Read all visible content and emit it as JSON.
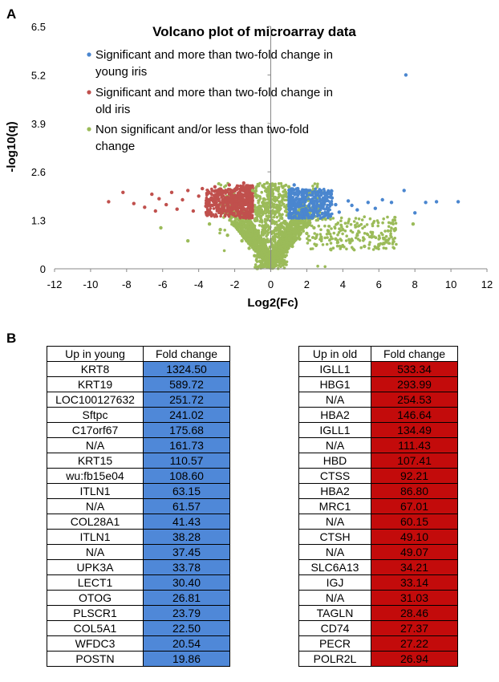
{
  "panels": {
    "a": "A",
    "b": "B"
  },
  "chart_data": {
    "type": "scatter",
    "title": "Volcano plot of microarray data",
    "xlabel": "Log2(Fc)",
    "ylabel": "-log10(q)",
    "xlim": [
      -12,
      12
    ],
    "ylim": [
      0,
      6.5
    ],
    "xticks": [
      "-12",
      "-10",
      "-8",
      "-6",
      "-4",
      "-2",
      "0",
      "2",
      "4",
      "6",
      "8",
      "10",
      "12"
    ],
    "yticks": [
      "0",
      "1.3",
      "2.6",
      "3.9",
      "5.2",
      "6.5"
    ],
    "grid": false,
    "legend_position": "top-center",
    "series": [
      {
        "name": "Significant and more than two-fold change in young iris",
        "color": "#4a86cf",
        "points": [
          [
            7.5,
            5.2
          ],
          [
            7.4,
            2.1
          ],
          [
            8.0,
            1.5
          ],
          [
            9.2,
            1.8
          ],
          [
            10.4,
            1.8
          ],
          [
            8.6,
            1.78
          ],
          [
            6.7,
            1.78
          ],
          [
            6.2,
            1.85
          ],
          [
            5.8,
            1.62
          ],
          [
            5.4,
            1.78
          ],
          [
            4.8,
            1.58
          ],
          [
            4.5,
            1.7
          ],
          [
            4.3,
            1.82
          ],
          [
            3.8,
            1.52
          ],
          [
            3.6,
            1.72
          ],
          [
            3.4,
            1.9
          ],
          [
            3.2,
            1.6
          ],
          [
            2.9,
            1.75
          ],
          [
            2.7,
            1.95
          ],
          [
            2.5,
            1.55
          ],
          [
            2.3,
            1.85
          ],
          [
            2.1,
            1.68
          ],
          [
            1.9,
            2.05
          ],
          [
            1.7,
            1.78
          ],
          [
            1.5,
            2.15
          ],
          [
            1.3,
            2.25
          ]
        ]
      },
      {
        "name": "Significant and more than two-fold change in old iris",
        "color": "#c0504d",
        "points": [
          [
            -9.0,
            1.8
          ],
          [
            -8.2,
            2.05
          ],
          [
            -7.6,
            1.75
          ],
          [
            -7.0,
            1.65
          ],
          [
            -6.6,
            2.0
          ],
          [
            -6.4,
            1.55
          ],
          [
            -6.2,
            1.88
          ],
          [
            -5.8,
            1.72
          ],
          [
            -5.5,
            2.05
          ],
          [
            -5.2,
            1.6
          ],
          [
            -4.9,
            1.85
          ],
          [
            -4.6,
            2.1
          ],
          [
            -4.3,
            1.55
          ],
          [
            -4.0,
            1.95
          ],
          [
            -3.8,
            2.15
          ],
          [
            -3.6,
            1.68
          ],
          [
            -3.3,
            1.9
          ],
          [
            -3.1,
            2.2
          ],
          [
            -2.9,
            1.6
          ],
          [
            -2.7,
            2.05
          ],
          [
            -2.5,
            1.78
          ],
          [
            -2.3,
            2.25
          ],
          [
            -2.1,
            1.7
          ],
          [
            -1.9,
            2.15
          ],
          [
            -1.7,
            1.95
          ],
          [
            -1.5,
            2.3
          ],
          [
            -1.3,
            2.08
          ]
        ]
      },
      {
        "name": "Non significant and/or less than two-fold change",
        "color": "#9bbb59",
        "points": [
          [
            -6.1,
            1.1
          ],
          [
            -4.6,
            0.75
          ],
          [
            -3.4,
            1.2
          ],
          [
            -2.8,
            1.05
          ],
          [
            -2.4,
            0.9
          ],
          [
            -2.0,
            1.15
          ],
          [
            -1.6,
            0.75
          ],
          [
            -1.2,
            0.55
          ],
          [
            -0.9,
            0.35
          ],
          [
            -0.6,
            0.2
          ],
          [
            -0.3,
            0.08
          ],
          [
            0.0,
            0.02
          ],
          [
            0.3,
            0.1
          ],
          [
            0.6,
            0.25
          ],
          [
            0.9,
            0.45
          ],
          [
            1.2,
            0.6
          ],
          [
            1.6,
            0.8
          ],
          [
            2.0,
            0.95
          ],
          [
            2.4,
            1.1
          ],
          [
            2.8,
            0.85
          ],
          [
            3.2,
            1.0
          ],
          [
            3.6,
            0.8
          ],
          [
            4.0,
            1.05
          ],
          [
            4.4,
            0.7
          ],
          [
            4.8,
            0.9
          ],
          [
            5.2,
            0.6
          ],
          [
            5.6,
            0.85
          ],
          [
            6.0,
            0.65
          ],
          [
            6.4,
            0.72
          ],
          [
            6.8,
            1.3
          ],
          [
            7.9,
            1.2
          ],
          [
            -1.0,
            2.1
          ],
          [
            1.0,
            2.2
          ],
          [
            -0.5,
            1.5
          ],
          [
            0.5,
            1.6
          ],
          [
            -0.2,
            2.3
          ],
          [
            0.2,
            2.25
          ]
        ]
      }
    ]
  },
  "tables": {
    "young": {
      "headers": [
        "Up in young",
        "Fold change"
      ],
      "rows": [
        [
          "KRT8",
          "1324.50"
        ],
        [
          "KRT19",
          "589.72"
        ],
        [
          "LOC100127632",
          "251.72"
        ],
        [
          "Sftpc",
          "241.02"
        ],
        [
          "C17orf67",
          "175.68"
        ],
        [
          "N/A",
          "161.73"
        ],
        [
          "KRT15",
          "110.57"
        ],
        [
          "wu:fb15e04",
          "108.60"
        ],
        [
          "ITLN1",
          "63.15"
        ],
        [
          "N/A",
          "61.57"
        ],
        [
          "COL28A1",
          "41.43"
        ],
        [
          "ITLN1",
          "38.28"
        ],
        [
          "N/A",
          "37.45"
        ],
        [
          "UPK3A",
          "33.78"
        ],
        [
          "LECT1",
          "30.40"
        ],
        [
          "OTOG",
          "26.81"
        ],
        [
          "PLSCR1",
          "23.79"
        ],
        [
          "COL5A1",
          "22.50"
        ],
        [
          "WFDC3",
          "20.54"
        ],
        [
          "POSTN",
          "19.86"
        ]
      ]
    },
    "old": {
      "headers": [
        "Up in old",
        "Fold change"
      ],
      "rows": [
        [
          "IGLL1",
          "533.34"
        ],
        [
          "HBG1",
          "293.99"
        ],
        [
          "N/A",
          "254.53"
        ],
        [
          "HBA2",
          "146.64"
        ],
        [
          "IGLL1",
          "134.49"
        ],
        [
          "N/A",
          "111.43"
        ],
        [
          "HBD",
          "107.41"
        ],
        [
          "CTSS",
          "92.21"
        ],
        [
          "HBA2",
          "86.80"
        ],
        [
          "MRC1",
          "67.01"
        ],
        [
          "N/A",
          "60.15"
        ],
        [
          "CTSH",
          "49.10"
        ],
        [
          "N/A",
          "49.07"
        ],
        [
          "SLC6A13",
          "34.21"
        ],
        [
          "IGJ",
          "33.14"
        ],
        [
          "N/A",
          "31.03"
        ],
        [
          "TAGLN",
          "28.46"
        ],
        [
          "CD74",
          "27.37"
        ],
        [
          "PECR",
          "27.22"
        ],
        [
          "POLR2L",
          "26.94"
        ]
      ]
    }
  }
}
